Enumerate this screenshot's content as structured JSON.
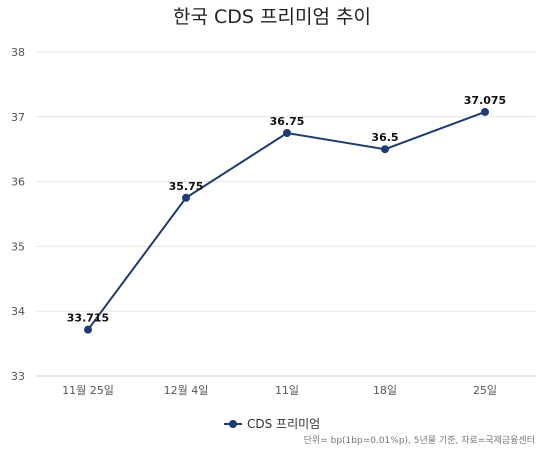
{
  "chart_data": {
    "type": "line",
    "title": "한국 CDS 프리미엄 추이",
    "categories": [
      "11월 25일",
      "12월 4일",
      "11일",
      "18일",
      "25일"
    ],
    "series": [
      {
        "name": "CDS 프리미엄",
        "values": [
          33.715,
          35.75,
          36.75,
          36.5,
          37.075
        ],
        "labels": [
          "33.715",
          "35.75",
          "36.75",
          "36.5",
          "37.075"
        ],
        "color": "#1f3b73"
      }
    ],
    "yticks": [
      "33",
      "34",
      "35",
      "36",
      "37",
      "38"
    ],
    "ylim": [
      33,
      38
    ],
    "grid": true,
    "legend": "bottom-center",
    "footnote": "단위= bp(1bp=0.01%p), 5년물 기준, 자료=국제금융센터"
  }
}
